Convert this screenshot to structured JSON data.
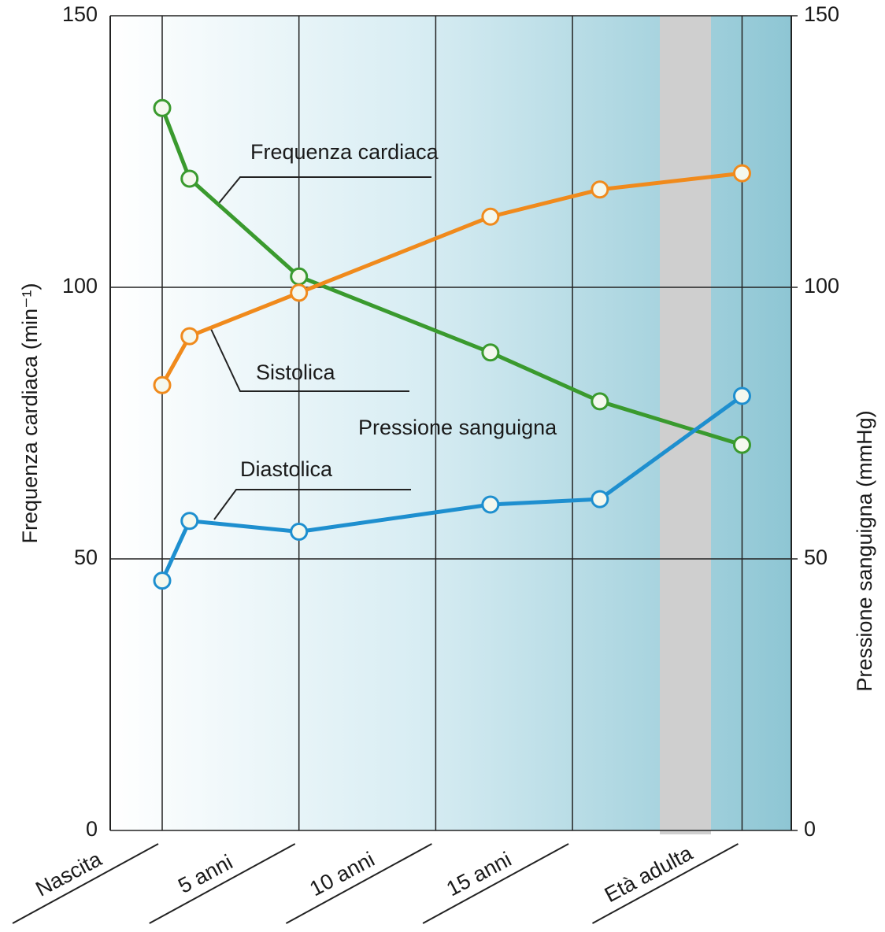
{
  "chart_data": {
    "type": "line",
    "y_label": "Frequenza cardiaca (min⁻¹)",
    "y2_label": "Pressione sanguigna (mmHg)",
    "annotation": "Pressione sanguigna",
    "x": [
      0,
      1,
      5,
      12,
      16,
      21.2
    ],
    "xlim": [
      -1.9,
      23
    ],
    "xticks": [
      {
        "value": 0,
        "label": "Nascita"
      },
      {
        "value": 5,
        "label": "5 anni"
      },
      {
        "value": 10,
        "label": "10 anni"
      },
      {
        "value": 15,
        "label": "15 anni"
      },
      {
        "value": 21.2,
        "label": "Età adulta"
      }
    ],
    "ylim": [
      0,
      150
    ],
    "yticks": [
      0,
      50,
      100,
      150
    ],
    "y2lim": [
      0,
      150
    ],
    "y2ticks": [
      0,
      50,
      100,
      150
    ],
    "grid": true,
    "series": [
      {
        "name": "Frequenza cardiaca",
        "color": "#3a9a2e",
        "values": [
          133,
          120,
          102,
          88,
          79,
          71
        ]
      },
      {
        "name": "Sistolica",
        "color": "#f08a1c",
        "axis": "y2",
        "values": [
          82,
          91,
          99,
          113,
          118,
          121
        ]
      },
      {
        "name": "Diastolica",
        "color": "#1e8fcf",
        "axis": "y2",
        "values": [
          46,
          57,
          55,
          60,
          61,
          80
        ]
      }
    ]
  }
}
